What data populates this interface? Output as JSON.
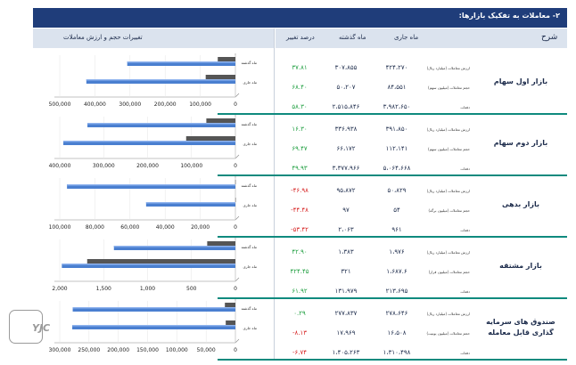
{
  "title": "۲- معاملات به تفکیک بازارها:",
  "headers": {
    "description": "شرح",
    "current_month": "ماه جاری",
    "last_month": "ماه گذشته",
    "pct_change": "درصد تغییر",
    "chart_title": "تغییرات حجم و ارزش معاملات"
  },
  "markets": [
    {
      "name": "بازار اول سهام",
      "rows": [
        {
          "label": "ارزش معاملات (میلیارد ریال)",
          "current": "۴۲۴،۲۷۰",
          "last": "۳۰۷،۸۵۵",
          "pct": "۳۷.۸۱",
          "neg": false
        },
        {
          "label": "حجم معاملات (میلیون سهم)",
          "current": "۸۴،۵۵۱",
          "last": "۵۰،۲۰۷",
          "pct": "۶۸.۴۰",
          "neg": false
        },
        {
          "label": "دفعات",
          "current": "۳،۹۸۲،۶۵۰",
          "last": "۲،۵۱۵،۸۴۶",
          "pct": "۵۸.۳۰",
          "neg": false
        }
      ]
    },
    {
      "name": "بازار دوم سهام",
      "rows": [
        {
          "label": "ارزش معاملات (میلیارد ریال)",
          "current": "۳۹۱،۸۵۰",
          "last": "۳۳۶،۹۳۸",
          "pct": "۱۶.۳۰",
          "neg": false
        },
        {
          "label": "حجم معاملات (میلیون سهم)",
          "current": "۱۱۲،۱۴۱",
          "last": "۶۶،۱۷۲",
          "pct": "۶۹.۴۷",
          "neg": false
        },
        {
          "label": "دفعات",
          "current": "۵،۰۶۴،۶۶۸",
          "last": "۳،۳۷۷،۹۶۶",
          "pct": "۴۹.۹۳",
          "neg": false
        }
      ]
    },
    {
      "name": "بازار بدهی",
      "rows": [
        {
          "label": "ارزش معاملات (میلیارد ریال)",
          "current": "۵۰،۸۲۹",
          "last": "۹۵،۸۷۲",
          "pct": "-۴۶.۹۸",
          "neg": true
        },
        {
          "label": "حجم معاملات (میلیون برگه)",
          "current": "۵۴",
          "last": "۹۷",
          "pct": "-۴۴.۴۸",
          "neg": true
        },
        {
          "label": "دفعات",
          "current": "۹۶۱",
          "last": "۲،۰۶۳",
          "pct": "-۵۳.۴۲",
          "neg": true
        }
      ]
    },
    {
      "name": "بازار مشتقه",
      "rows": [
        {
          "label": "ارزش معاملات (میلیارد ریال)",
          "current": "۱،۹۷۶",
          "last": "۱،۳۸۳",
          "pct": "۴۲.۹۰",
          "neg": false
        },
        {
          "label": "حجم معاملات (میلیون قرار)",
          "current": "۱،۶۸۷.۶",
          "last": "۳۲۱",
          "pct": "۴۲۴.۴۵",
          "neg": false
        },
        {
          "label": "دفعات",
          "current": "۲۱۳،۶۹۵",
          "last": "۱۳۱،۹۷۹",
          "pct": "۶۱.۹۲",
          "neg": false
        }
      ]
    },
    {
      "name": "صندوق های سرمایه گذاری قابل معامله",
      "rows": [
        {
          "label": "ارزش معاملات (میلیارد ریال)",
          "current": "۲۷۸،۶۴۶",
          "last": "۲۷۷،۸۳۷",
          "pct": "۰.۲۹",
          "neg": false
        },
        {
          "label": "حجم معاملات (میلیون یونیت)",
          "current": "۱۶،۵۰۸",
          "last": "۱۷،۹۶۹",
          "pct": "-۸.۱۳",
          "neg": true
        },
        {
          "label": "دفعات",
          "current": "۱،۳۱۰،۴۹۸",
          "last": "۱،۴۰۵،۲۶۳",
          "pct": "-۶.۷۴",
          "neg": true
        }
      ]
    }
  ],
  "chart_data": [
    {
      "type": "bar",
      "orientation": "horizontal",
      "categories": [
        "ماه جاری",
        "ماه گذشته"
      ],
      "series": [
        {
          "values": [
            424270,
            307855
          ]
        },
        {
          "values": [
            84551,
            50207
          ]
        }
      ],
      "xlim": [
        0,
        500000
      ],
      "xticks": [
        "500,000",
        "400,000",
        "300,000",
        "200,000",
        "100,000",
        "0"
      ]
    },
    {
      "type": "bar",
      "orientation": "horizontal",
      "categories": [
        "ماه جاری",
        "ماه گذشته"
      ],
      "series": [
        {
          "values": [
            391850,
            336938
          ]
        },
        {
          "values": [
            112141,
            66172
          ]
        }
      ],
      "xlim": [
        0,
        400000
      ],
      "xticks": [
        "400,000",
        "300,000",
        "200,000",
        "100,000",
        "0"
      ]
    },
    {
      "type": "bar",
      "orientation": "horizontal",
      "categories": [
        "ماه جاری",
        "ماه گذشته"
      ],
      "series": [
        {
          "values": [
            50829,
            95872
          ]
        },
        {
          "values": [
            54,
            97
          ]
        }
      ],
      "xlim": [
        0,
        100000
      ],
      "xticks": [
        "100,000",
        "80,000",
        "60,000",
        "40,000",
        "20,000",
        "0"
      ]
    },
    {
      "type": "bar",
      "orientation": "horizontal",
      "categories": [
        "ماه جاری",
        "ماه گذشته"
      ],
      "series": [
        {
          "values": [
            1976,
            1383
          ]
        },
        {
          "values": [
            1687.6,
            321
          ]
        }
      ],
      "xlim": [
        0,
        2000
      ],
      "xticks": [
        "2,000",
        "1,500",
        "1,000",
        "500",
        "0"
      ]
    },
    {
      "type": "bar",
      "orientation": "horizontal",
      "categories": [
        "ماه جاری",
        "ماه گذشته"
      ],
      "series": [
        {
          "values": [
            278646,
            277837
          ]
        },
        {
          "values": [
            16508,
            17969
          ]
        }
      ],
      "xlim": [
        0,
        300000
      ],
      "xticks": [
        "300,000",
        "250,000",
        "200,000",
        "150,000",
        "100,000",
        "50,000",
        "0"
      ]
    }
  ],
  "colors": {
    "blue_bar": "#4a7fd0",
    "gray_bar": "#555555",
    "positive": "#1e9e3f",
    "negative": "#d62020",
    "header_band": "#1f3d7a"
  },
  "watermark": "YJC"
}
